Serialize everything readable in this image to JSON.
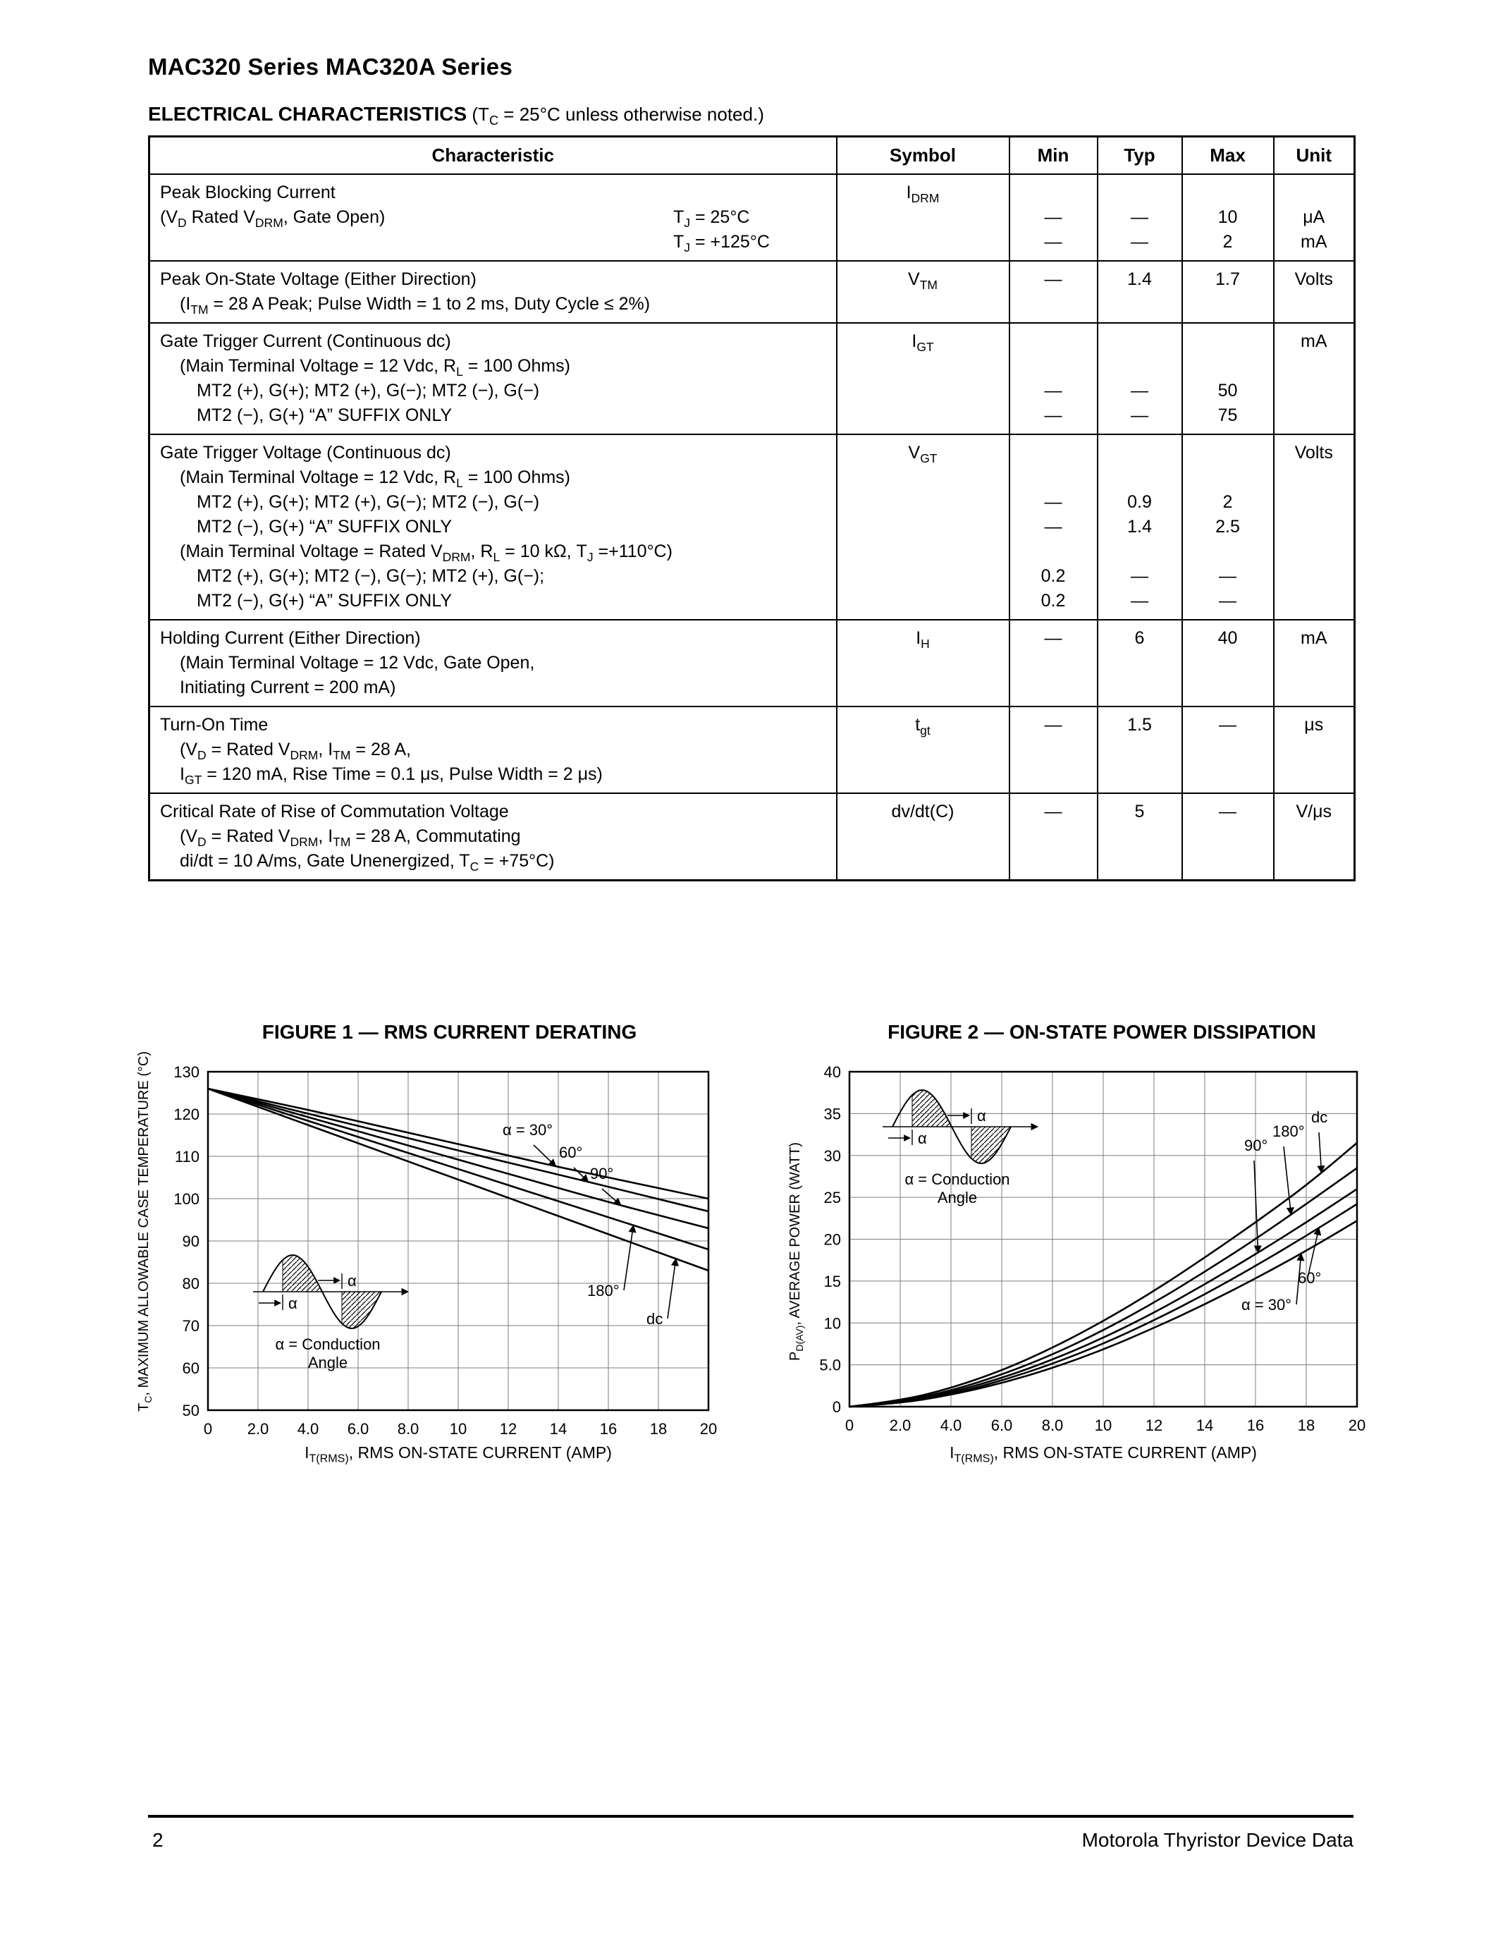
{
  "header": {
    "title": "MAC320 Series MAC320A Series",
    "section_title": "ELECTRICAL CHARACTERISTICS",
    "section_note": "(T~C~ = 25°C unless otherwise noted.)"
  },
  "table": {
    "columns": [
      "Characteristic",
      "Symbol",
      "Min",
      "Typ",
      "Max",
      "Unit"
    ],
    "rows": [
      {
        "symbol": "I~DRM~",
        "lines": [
          {
            "text": "Peak Blocking Current",
            "indent": 0
          },
          {
            "text": "(V~D~ Rated V~DRM~, Gate Open)",
            "indent": 0,
            "right": "T~J~ = 25°C"
          },
          {
            "text": "",
            "indent": 0,
            "right": "T~J~ = +125°C"
          }
        ],
        "min": [
          "",
          "—",
          "—"
        ],
        "typ": [
          "",
          "—",
          "—"
        ],
        "max": [
          "",
          "10",
          "2"
        ],
        "unit": [
          "",
          "μA",
          "mA"
        ]
      },
      {
        "symbol": "V~TM~",
        "lines": [
          {
            "text": "Peak On-State Voltage (Either Direction)",
            "indent": 0
          },
          {
            "text": "(I~TM~ = 28 A Peak; Pulse Width = 1 to 2 ms, Duty Cycle ≤ 2%)",
            "indent": 1
          }
        ],
        "min": [
          "—",
          ""
        ],
        "typ": [
          "1.4",
          ""
        ],
        "max": [
          "1.7",
          ""
        ],
        "unit": [
          "Volts",
          ""
        ]
      },
      {
        "symbol": "I~GT~",
        "lines": [
          {
            "text": "Gate Trigger Current (Continuous dc)",
            "indent": 0
          },
          {
            "text": "(Main Terminal Voltage = 12 Vdc, R~L~ = 100 Ohms)",
            "indent": 1
          },
          {
            "text": "MT2 (+), G(+); MT2 (+), G(−); MT2 (−), G(−)",
            "indent": 2
          },
          {
            "text": "MT2 (−), G(+) “A” SUFFIX ONLY",
            "indent": 2
          }
        ],
        "min": [
          "",
          "",
          "—",
          "—"
        ],
        "typ": [
          "",
          "",
          "—",
          "—"
        ],
        "max": [
          "",
          "",
          "50",
          "75"
        ],
        "unit": [
          "mA",
          "",
          "",
          ""
        ]
      },
      {
        "symbol": "V~GT~",
        "lines": [
          {
            "text": "Gate Trigger Voltage (Continuous dc)",
            "indent": 0
          },
          {
            "text": "(Main Terminal Voltage = 12 Vdc, R~L~ = 100 Ohms)",
            "indent": 1
          },
          {
            "text": "MT2 (+), G(+); MT2 (+), G(−); MT2 (−), G(−)",
            "indent": 2
          },
          {
            "text": "MT2 (−), G(+) “A” SUFFIX ONLY",
            "indent": 2
          },
          {
            "text": "(Main Terminal Voltage = Rated V~DRM~, R~L~ = 10 kΩ, T~J~ =+110°C)",
            "indent": 1
          },
          {
            "text": "MT2 (+), G(+); MT2 (−), G(−); MT2 (+), G(−);",
            "indent": 2
          },
          {
            "text": "MT2 (−), G(+) “A” SUFFIX ONLY",
            "indent": 2
          }
        ],
        "min": [
          "",
          "",
          "—",
          "—",
          "",
          "0.2",
          "0.2"
        ],
        "typ": [
          "",
          "",
          "0.9",
          "1.4",
          "",
          "—",
          "—"
        ],
        "max": [
          "",
          "",
          "2",
          "2.5",
          "",
          "—",
          "—"
        ],
        "unit": [
          "Volts",
          "",
          "",
          "",
          "",
          "",
          ""
        ]
      },
      {
        "symbol": "I~H~",
        "lines": [
          {
            "text": "Holding Current (Either Direction)",
            "indent": 0
          },
          {
            "text": "(Main Terminal Voltage = 12 Vdc, Gate Open,",
            "indent": 1
          },
          {
            "text": "Initiating Current = 200 mA)",
            "indent": 1
          }
        ],
        "min": [
          "—",
          "",
          ""
        ],
        "typ": [
          "6",
          "",
          ""
        ],
        "max": [
          "40",
          "",
          ""
        ],
        "unit": [
          "mA",
          "",
          ""
        ]
      },
      {
        "symbol": "t~gt~",
        "lines": [
          {
            "text": "Turn-On Time",
            "indent": 0
          },
          {
            "text": "(V~D~ = Rated V~DRM~, I~TM~ = 28 A,",
            "indent": 1
          },
          {
            "text": "I~GT~ = 120 mA, Rise Time = 0.1 μs, Pulse Width = 2 μs)",
            "indent": 1
          }
        ],
        "min": [
          "—",
          "",
          ""
        ],
        "typ": [
          "1.5",
          "",
          ""
        ],
        "max": [
          "—",
          "",
          ""
        ],
        "unit": [
          "μs",
          "",
          ""
        ]
      },
      {
        "symbol": "dv/dt(C)",
        "lines": [
          {
            "text": "Critical Rate of Rise of Commutation Voltage",
            "indent": 0
          },
          {
            "text": "(V~D~ = Rated V~DRM~, I~TM~ = 28 A, Commutating",
            "indent": 1
          },
          {
            "text": "di/dt = 10 A/ms, Gate Unenergized, T~C~ = +75°C)",
            "indent": 1
          }
        ],
        "min": [
          "—",
          "",
          ""
        ],
        "typ": [
          "5",
          "",
          ""
        ],
        "max": [
          "—",
          "",
          ""
        ],
        "unit": [
          "V/μs",
          "",
          ""
        ]
      }
    ]
  },
  "chart_data": [
    {
      "type": "line",
      "title": "FIGURE 1 — RMS CURRENT DERATING",
      "xlabel": "I~T(RMS)~, RMS ON-STATE CURRENT (AMP)",
      "ylabel": "T~C~, MAXIMUM ALLOWABLE CASE TEMPERATURE (°C)",
      "xlim": [
        0,
        20
      ],
      "ylim": [
        50,
        130
      ],
      "x_ticks": [
        "0",
        "2.0",
        "4.0",
        "6.0",
        "8.0",
        "10",
        "12",
        "14",
        "16",
        "18",
        "20"
      ],
      "y_ticks": [
        "130",
        "120",
        "110",
        "100",
        "90",
        "80",
        "70",
        "60",
        "50"
      ],
      "grid": true,
      "x": [
        0,
        2,
        4,
        6,
        8,
        10,
        12,
        14,
        16,
        18,
        20
      ],
      "series": [
        {
          "name": "α = 30°",
          "values": [
            126,
            123.5,
            121,
            118.3,
            115.6,
            112.9,
            110.2,
            107.5,
            105,
            102.5,
            100
          ]
        },
        {
          "name": "60°",
          "values": [
            126,
            123,
            120.1,
            117.2,
            114.3,
            111.4,
            108.5,
            105.7,
            102.8,
            99.9,
            97
          ]
        },
        {
          "name": "90°",
          "values": [
            126,
            122.6,
            119.3,
            115.9,
            112.6,
            109.2,
            105.9,
            102.5,
            99.2,
            96.1,
            93
          ]
        },
        {
          "name": "180°",
          "values": [
            126,
            122.2,
            118.4,
            114.6,
            110.8,
            107,
            103.2,
            99.4,
            95.6,
            91.8,
            88
          ]
        },
        {
          "name": "dc",
          "values": [
            126,
            121.7,
            117.4,
            113.1,
            108.8,
            104.5,
            100.2,
            95.9,
            91.6,
            87.3,
            83
          ]
        }
      ],
      "inset_label": [
        "α =  Conduction",
        "Angle"
      ]
    },
    {
      "type": "line",
      "title": "FIGURE 2 — ON-STATE POWER DISSIPATION",
      "xlabel": "I~T(RMS)~, RMS ON-STATE CURRENT (AMP)",
      "ylabel": "P~D(AV)~, AVERAGE POWER (WATT)",
      "xlim": [
        0,
        20
      ],
      "ylim": [
        0,
        40
      ],
      "x_ticks": [
        "0",
        "2.0",
        "4.0",
        "6.0",
        "8.0",
        "10",
        "12",
        "14",
        "16",
        "18",
        "20"
      ],
      "y_ticks": [
        "40",
        "35",
        "30",
        "25",
        "20",
        "15",
        "10",
        "5.0",
        "0"
      ],
      "grid": true,
      "x": [
        0,
        2,
        4,
        6,
        8,
        10,
        12,
        14,
        16,
        18,
        20
      ],
      "series": [
        {
          "name": "dc",
          "values": [
            0,
            0.7,
            2.2,
            4.3,
            7.0,
            10.2,
            13.8,
            17.8,
            22.0,
            26.4,
            31.5
          ]
        },
        {
          "name": "180°",
          "values": [
            0,
            0.6,
            1.9,
            3.8,
            6.2,
            9.1,
            12.4,
            16.1,
            20.0,
            24.2,
            28.5
          ]
        },
        {
          "name": "90°",
          "values": [
            0,
            0.5,
            1.7,
            3.4,
            5.6,
            8.2,
            11.2,
            14.6,
            18.2,
            22.0,
            26.0
          ]
        },
        {
          "name": "60°",
          "values": [
            0,
            0.45,
            1.5,
            3.1,
            5.1,
            7.5,
            10.3,
            13.4,
            16.8,
            20.4,
            24.2
          ]
        },
        {
          "name": "α = 30°",
          "values": [
            0,
            0.4,
            1.4,
            2.8,
            4.6,
            6.8,
            9.4,
            12.2,
            15.3,
            18.6,
            22.2
          ]
        }
      ],
      "inset_label": [
        "α =  Conduction",
        "Angle"
      ]
    }
  ],
  "footer": {
    "page_number": "2",
    "right_text": "Motorola Thyristor Device Data"
  }
}
